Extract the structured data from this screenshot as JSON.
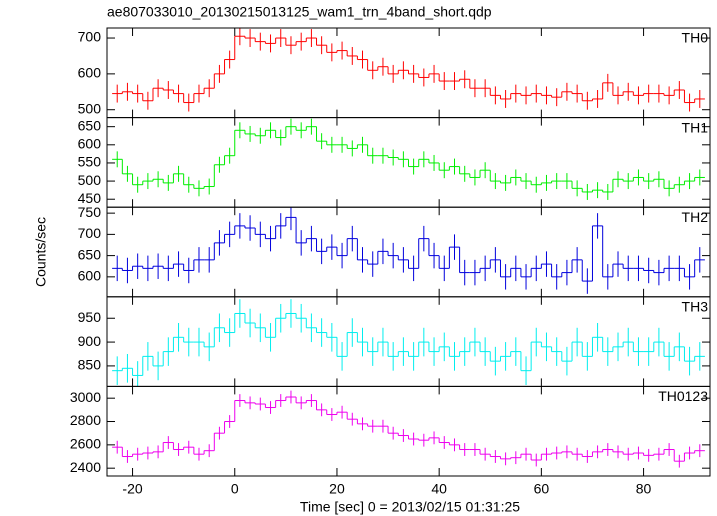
{
  "title": "ae807033010_20130215013125_wam1_trn_4band_short.qdp",
  "y_label": "Counts/sec",
  "x_label": "Time [sec] 0 = 2013/02/15 01:31:25",
  "chart_data": [
    {
      "type": "step",
      "name": "TH0",
      "color": "#ff0000",
      "x": [
        -23,
        -21,
        -19,
        -17,
        -15,
        -13,
        -11,
        -9,
        -7,
        -5,
        -3,
        -1,
        1,
        3,
        5,
        7,
        9,
        11,
        13,
        15,
        17,
        19,
        21,
        23,
        25,
        27,
        29,
        31,
        33,
        35,
        37,
        39,
        41,
        43,
        45,
        47,
        49,
        51,
        53,
        55,
        57,
        59,
        61,
        63,
        65,
        67,
        69,
        71,
        73,
        75,
        77,
        79,
        81,
        83,
        85,
        87,
        89,
        91
      ],
      "values": [
        545,
        550,
        545,
        525,
        560,
        555,
        545,
        520,
        545,
        560,
        600,
        640,
        705,
        700,
        690,
        685,
        700,
        680,
        690,
        700,
        680,
        660,
        665,
        650,
        640,
        610,
        620,
        600,
        610,
        600,
        590,
        600,
        580,
        580,
        585,
        560,
        560,
        540,
        530,
        545,
        540,
        545,
        540,
        535,
        550,
        545,
        525,
        530,
        575,
        540,
        550,
        540,
        545,
        545,
        540,
        555,
        520,
        530
      ],
      "error": 25,
      "ylim": [
        478,
        728
      ],
      "yticks": [
        500,
        600,
        700
      ]
    },
    {
      "type": "step",
      "name": "TH1",
      "color": "#00ee00",
      "x": [
        -23,
        -21,
        -19,
        -17,
        -15,
        -13,
        -11,
        -9,
        -7,
        -5,
        -3,
        -1,
        1,
        3,
        5,
        7,
        9,
        11,
        13,
        15,
        17,
        19,
        21,
        23,
        25,
        27,
        29,
        31,
        33,
        35,
        37,
        39,
        41,
        43,
        45,
        47,
        49,
        51,
        53,
        55,
        57,
        59,
        61,
        63,
        65,
        67,
        69,
        71,
        73,
        75,
        77,
        79,
        81,
        83,
        85,
        87,
        89,
        91
      ],
      "values": [
        560,
        520,
        490,
        500,
        505,
        495,
        520,
        490,
        480,
        485,
        545,
        570,
        640,
        630,
        625,
        640,
        620,
        650,
        640,
        650,
        610,
        600,
        600,
        590,
        600,
        570,
        570,
        565,
        560,
        540,
        560,
        550,
        530,
        540,
        520,
        510,
        530,
        500,
        495,
        510,
        500,
        490,
        495,
        500,
        500,
        480,
        470,
        475,
        470,
        505,
        500,
        510,
        500,
        505,
        480,
        490,
        500,
        510
      ],
      "error": 22,
      "ylim": [
        428,
        675
      ],
      "yticks": [
        450,
        500,
        550,
        600,
        650
      ]
    },
    {
      "type": "step",
      "name": "TH2",
      "color": "#0000dd",
      "x": [
        -23,
        -21,
        -19,
        -17,
        -15,
        -13,
        -11,
        -9,
        -7,
        -5,
        -3,
        -1,
        1,
        3,
        5,
        7,
        9,
        11,
        13,
        15,
        17,
        19,
        21,
        23,
        25,
        27,
        29,
        31,
        33,
        35,
        37,
        39,
        41,
        43,
        45,
        47,
        49,
        51,
        53,
        55,
        57,
        59,
        61,
        63,
        65,
        67,
        69,
        71,
        73,
        75,
        77,
        79,
        81,
        83,
        85,
        87,
        89,
        91
      ],
      "values": [
        620,
        615,
        625,
        620,
        625,
        620,
        630,
        615,
        640,
        640,
        680,
        700,
        720,
        715,
        700,
        690,
        720,
        740,
        680,
        690,
        660,
        670,
        650,
        690,
        640,
        630,
        660,
        650,
        640,
        620,
        690,
        650,
        620,
        670,
        610,
        610,
        620,
        640,
        600,
        620,
        600,
        620,
        630,
        600,
        610,
        640,
        590,
        720,
        600,
        630,
        620,
        620,
        615,
        610,
        620,
        620,
        600,
        640
      ],
      "error": 30,
      "ylim": [
        553,
        764
      ],
      "yticks": [
        600,
        650,
        700,
        750
      ]
    },
    {
      "type": "step",
      "name": "TH3",
      "color": "#00eeee",
      "x": [
        -23,
        -21,
        -19,
        -17,
        -15,
        -13,
        -11,
        -9,
        -7,
        -5,
        -3,
        -1,
        1,
        3,
        5,
        7,
        9,
        11,
        13,
        15,
        17,
        19,
        21,
        23,
        25,
        27,
        29,
        31,
        33,
        35,
        37,
        39,
        41,
        43,
        45,
        47,
        49,
        51,
        53,
        55,
        57,
        59,
        61,
        63,
        65,
        67,
        69,
        71,
        73,
        75,
        77,
        79,
        81,
        83,
        85,
        87,
        89,
        91
      ],
      "values": [
        840,
        845,
        830,
        870,
        850,
        880,
        910,
        900,
        900,
        890,
        930,
        920,
        960,
        940,
        930,
        910,
        950,
        960,
        950,
        930,
        920,
        910,
        870,
        920,
        900,
        880,
        900,
        870,
        880,
        870,
        900,
        880,
        890,
        870,
        880,
        900,
        880,
        860,
        870,
        880,
        840,
        900,
        890,
        880,
        860,
        900,
        870,
        910,
        880,
        890,
        900,
        880,
        880,
        900,
        870,
        890,
        860,
        870
      ],
      "error": 30,
      "ylim": [
        807,
        995
      ],
      "yticks": [
        850,
        900,
        950
      ]
    },
    {
      "type": "step",
      "name": "TH0123",
      "color": "#ee00ee",
      "x": [
        -23,
        -21,
        -19,
        -17,
        -15,
        -13,
        -11,
        -9,
        -7,
        -5,
        -3,
        -1,
        1,
        3,
        5,
        7,
        9,
        11,
        13,
        15,
        17,
        19,
        21,
        23,
        25,
        27,
        29,
        31,
        33,
        35,
        37,
        39,
        41,
        43,
        45,
        47,
        49,
        51,
        53,
        55,
        57,
        59,
        61,
        63,
        65,
        67,
        69,
        71,
        73,
        75,
        77,
        79,
        81,
        83,
        85,
        87,
        89,
        91
      ],
      "values": [
        2580,
        2500,
        2520,
        2530,
        2540,
        2620,
        2560,
        2580,
        2520,
        2550,
        2700,
        2800,
        2980,
        2960,
        2950,
        2920,
        2980,
        3010,
        2960,
        2980,
        2900,
        2860,
        2880,
        2820,
        2780,
        2760,
        2760,
        2700,
        2680,
        2650,
        2640,
        2660,
        2620,
        2600,
        2560,
        2560,
        2520,
        2500,
        2480,
        2490,
        2520,
        2470,
        2520,
        2530,
        2540,
        2520,
        2500,
        2540,
        2560,
        2540,
        2520,
        2530,
        2510,
        2520,
        2560,
        2460,
        2530,
        2550
      ],
      "error": 55,
      "ylim": [
        2333,
        3101
      ],
      "yticks": [
        2400,
        2600,
        2800,
        3000
      ],
      "xlim": [
        -25,
        93
      ],
      "xticks": [
        -20,
        0,
        20,
        40,
        60,
        80
      ]
    }
  ]
}
